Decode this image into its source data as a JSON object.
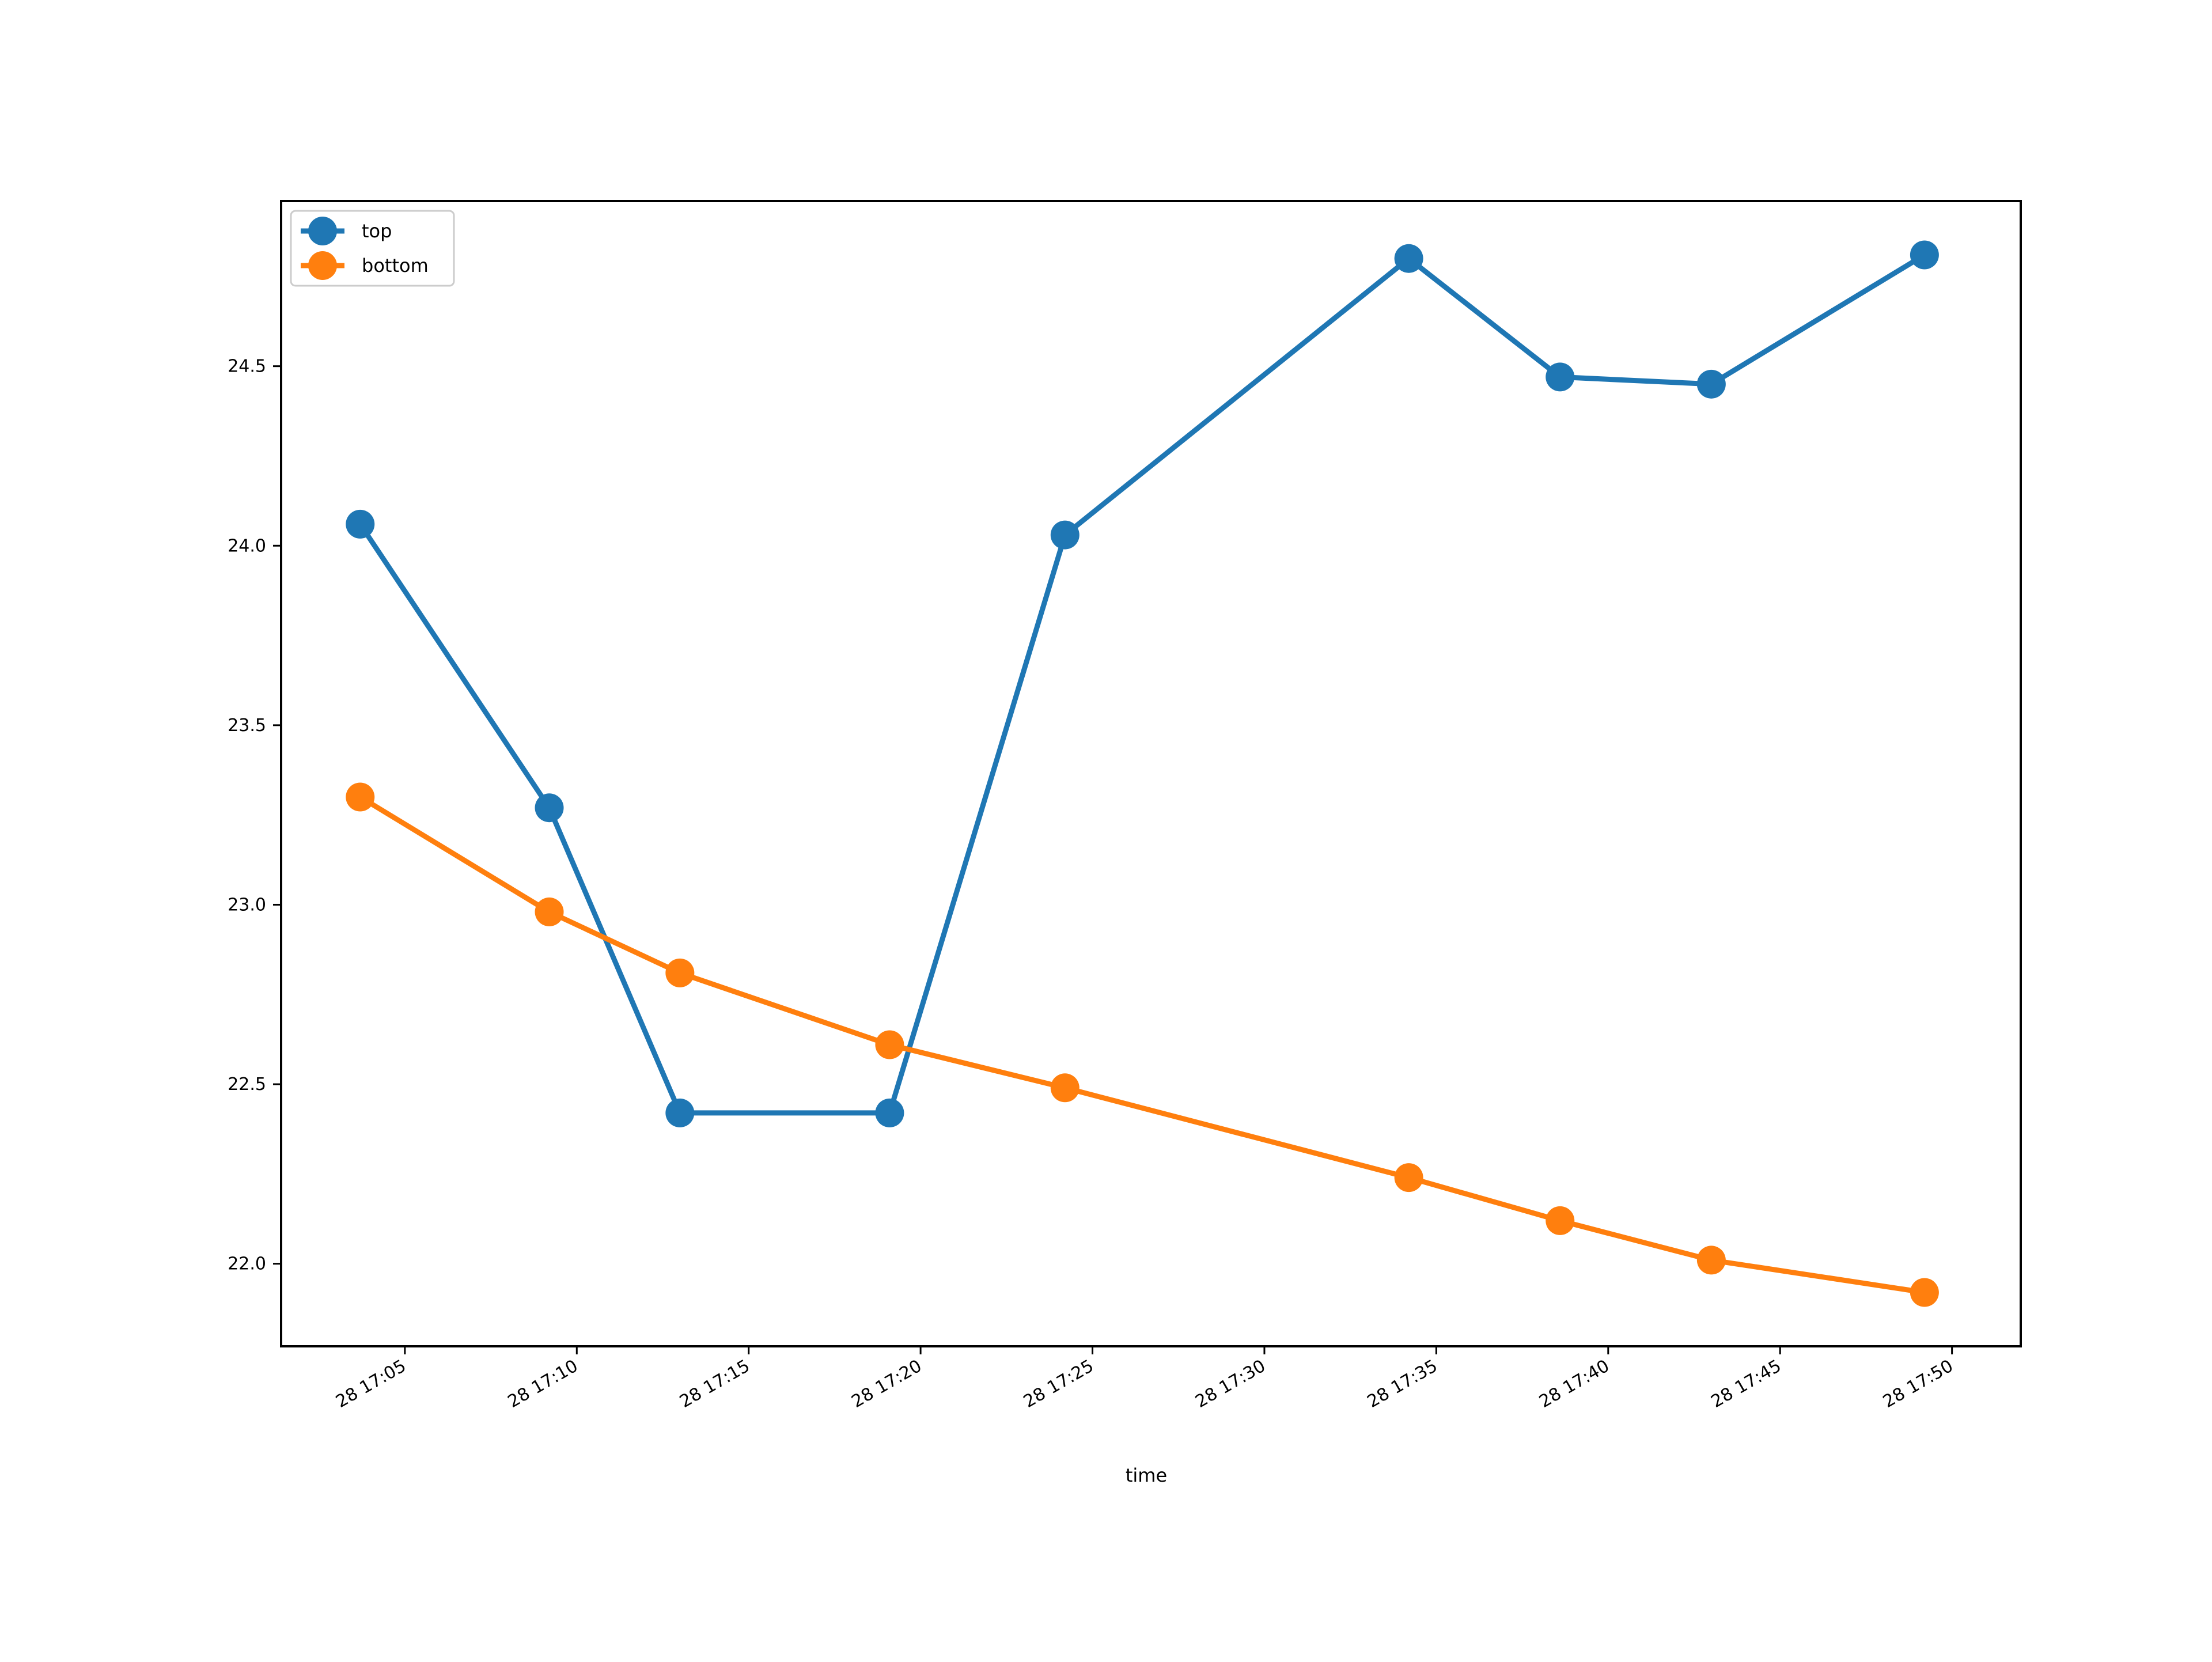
{
  "chart_data": {
    "type": "line",
    "xlabel": "time",
    "ylabel": "",
    "x_tick_labels": [
      "28 17:05",
      "28 17:10",
      "28 17:15",
      "28 17:20",
      "28 17:25",
      "28 17:30",
      "28 17:35",
      "28 17:40",
      "28 17:45",
      "28 17:50"
    ],
    "x_ticks": [
      "17:05",
      "17:10",
      "17:15",
      "17:20",
      "17:25",
      "17:30",
      "17:35",
      "17:40",
      "17:45",
      "17:50"
    ],
    "xlim": [
      "17:01.4",
      "17:52.0"
    ],
    "y_ticks": [
      22.0,
      22.5,
      23.0,
      23.5,
      24.0,
      24.5
    ],
    "y_tick_labels": [
      "22.0",
      "22.5",
      "23.0",
      "23.5",
      "24.0",
      "24.5"
    ],
    "ylim": [
      21.77,
      24.96
    ],
    "x": [
      "17:03.7",
      "17:09.2",
      "17:13.0",
      "17:19.1",
      "17:24.2",
      "17:34.2",
      "17:38.6",
      "17:43.0",
      "17:49.2"
    ],
    "series": [
      {
        "name": "top",
        "color": "#1f77b4",
        "values": [
          24.06,
          23.27,
          22.42,
          22.42,
          24.03,
          24.8,
          24.47,
          24.45,
          24.81
        ]
      },
      {
        "name": "bottom",
        "color": "#ff7f0e",
        "values": [
          23.3,
          22.98,
          22.81,
          22.61,
          22.49,
          22.24,
          22.12,
          22.01,
          21.92
        ]
      }
    ],
    "grid": false,
    "legend_position": "top-left"
  }
}
